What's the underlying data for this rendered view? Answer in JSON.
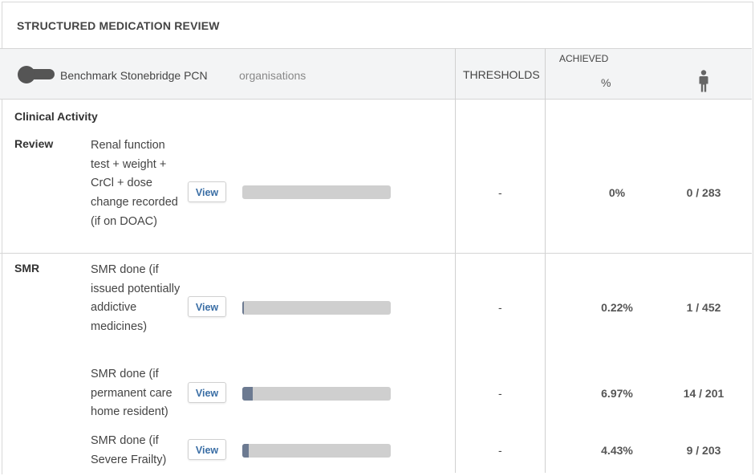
{
  "panel": {
    "title": "STRUCTURED MEDICATION REVIEW"
  },
  "header": {
    "benchmark_label": "Benchmark Stonebridge PCN",
    "organisations_label": "organisations",
    "thresholds_label": "THRESHOLDS",
    "achieved_label": "ACHIEVED",
    "percent_label": "%"
  },
  "section": {
    "title": "Clinical Activity"
  },
  "groups": {
    "review": "Review",
    "smr": "SMR"
  },
  "rows": [
    {
      "desc": "Renal function test + weight + CrCl + dose change recorded (if on DOAC)",
      "view": "View",
      "threshold": "-",
      "percent": "0%",
      "count": "0 / 283",
      "fraction": 0.0
    },
    {
      "desc": "SMR done (if issued potentially addictive medicines)",
      "view": "View",
      "threshold": "-",
      "percent": "0.22%",
      "count": "1 / 452",
      "fraction": 0.0022
    },
    {
      "desc": "SMR done (if permanent care home resident)",
      "view": "View",
      "threshold": "-",
      "percent": "6.97%",
      "count": "14 / 201",
      "fraction": 0.0697
    },
    {
      "desc": "SMR done (if Severe Frailty)",
      "view": "View",
      "threshold": "-",
      "percent": "4.43%",
      "count": "9 / 203",
      "fraction": 0.0443
    }
  ],
  "colors": {
    "bar_fill": "#6c7a91",
    "bar_track": "#cfcfcf",
    "link": "#3a6ea5"
  },
  "icons": {
    "toggle": "toggle-switch-icon",
    "person": "person-icon"
  }
}
